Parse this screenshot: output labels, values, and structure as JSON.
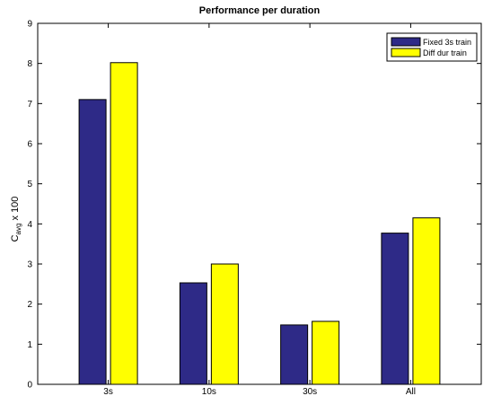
{
  "chart_data": {
    "type": "bar",
    "title": "Performance per duration",
    "ylabel_main": "C",
    "ylabel_sub": "avg",
    "ylabel_suffix": " x 100",
    "xlabel": "",
    "ylim": [
      0,
      9
    ],
    "yticks": [
      0,
      1,
      2,
      3,
      4,
      5,
      6,
      7,
      8,
      9
    ],
    "categories": [
      "3s",
      "10s",
      "30s",
      "All"
    ],
    "series": [
      {
        "name": "Fixed 3s train",
        "color": "#2e2a87",
        "values": [
          7.1,
          2.53,
          1.48,
          3.77
        ]
      },
      {
        "name": "Diff dur train",
        "color": "#ffff00",
        "values": [
          8.02,
          3.0,
          1.57,
          4.15
        ]
      }
    ],
    "legend_position": "top-right",
    "grid": false
  }
}
